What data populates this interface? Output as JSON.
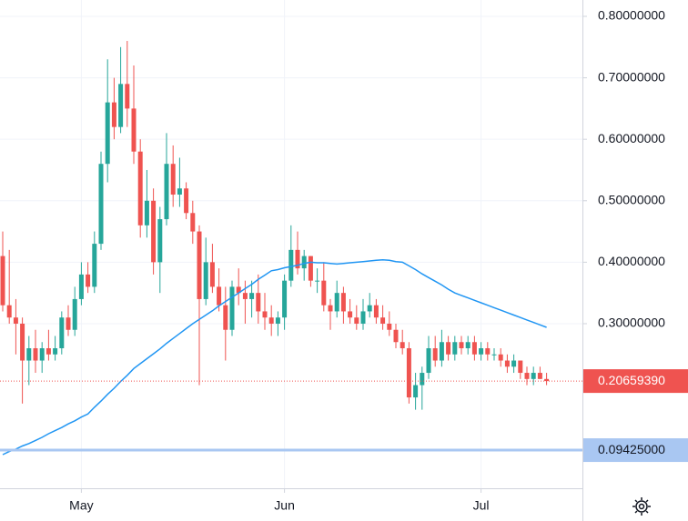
{
  "chart_data": {
    "type": "candlestick",
    "up_color": "#26a69a",
    "down_color": "#ef5350",
    "ma_color": "#2196f3",
    "ylim": [
      0.0322,
      0.8266
    ],
    "yticks": [
      {
        "value": 0.8,
        "label": "0.80000000"
      },
      {
        "value": 0.7,
        "label": "0.70000000"
      },
      {
        "value": 0.6,
        "label": "0.60000000"
      },
      {
        "value": 0.5,
        "label": "0.50000000"
      },
      {
        "value": 0.4,
        "label": "0.40000000"
      },
      {
        "value": 0.3,
        "label": "0.30000000"
      }
    ],
    "xticks": [
      {
        "value": 12,
        "label": "May"
      },
      {
        "value": 43,
        "label": "Jun"
      },
      {
        "value": 73,
        "label": "Jul"
      }
    ],
    "grid": true,
    "last_price": {
      "value": 0.2065939,
      "label": "0.20659390"
    },
    "price_line": {
      "value": 0.09425,
      "label": "0.09425000"
    },
    "open": [
      0.41,
      0.33,
      0.31,
      0.3,
      0.24,
      0.26,
      0.24,
      0.26,
      0.25,
      0.26,
      0.31,
      0.29,
      0.34,
      0.38,
      0.36,
      0.43,
      0.56,
      0.66,
      0.62,
      0.69,
      0.65,
      0.58,
      0.46,
      0.5,
      0.4,
      0.47,
      0.56,
      0.51,
      0.52,
      0.48,
      0.45,
      0.34,
      0.4,
      0.36,
      0.33,
      0.29,
      0.36,
      0.35,
      0.34,
      0.35,
      0.32,
      0.31,
      0.3,
      0.31,
      0.37,
      0.42,
      0.39,
      0.41,
      0.37,
      0.37,
      0.33,
      0.32,
      0.35,
      0.32,
      0.31,
      0.3,
      0.32,
      0.33,
      0.31,
      0.3,
      0.29,
      0.27,
      0.26,
      0.18,
      0.2,
      0.22,
      0.26,
      0.24,
      0.27,
      0.25,
      0.27,
      0.26,
      0.27,
      0.25,
      0.26,
      0.25,
      0.25,
      0.24,
      0.23,
      0.24,
      0.22,
      0.21,
      0.22,
      0.21
    ],
    "high": [
      0.45,
      0.42,
      0.34,
      0.31,
      0.28,
      0.29,
      0.27,
      0.29,
      0.28,
      0.32,
      0.33,
      0.36,
      0.4,
      0.4,
      0.45,
      0.58,
      0.73,
      0.7,
      0.75,
      0.76,
      0.72,
      0.6,
      0.55,
      0.52,
      0.49,
      0.61,
      0.59,
      0.57,
      0.53,
      0.5,
      0.46,
      0.44,
      0.43,
      0.39,
      0.36,
      0.37,
      0.39,
      0.37,
      0.37,
      0.38,
      0.35,
      0.33,
      0.32,
      0.38,
      0.46,
      0.45,
      0.42,
      0.41,
      0.39,
      0.4,
      0.34,
      0.37,
      0.36,
      0.34,
      0.33,
      0.34,
      0.35,
      0.34,
      0.33,
      0.32,
      0.3,
      0.29,
      0.27,
      0.22,
      0.23,
      0.28,
      0.28,
      0.29,
      0.28,
      0.28,
      0.28,
      0.28,
      0.28,
      0.27,
      0.27,
      0.26,
      0.26,
      0.25,
      0.25,
      0.24,
      0.23,
      0.23,
      0.23,
      0.22
    ],
    "low": [
      0.32,
      0.3,
      0.25,
      0.17,
      0.2,
      0.22,
      0.22,
      0.24,
      0.24,
      0.25,
      0.28,
      0.28,
      0.33,
      0.35,
      0.35,
      0.42,
      0.53,
      0.6,
      0.61,
      0.62,
      0.56,
      0.44,
      0.44,
      0.38,
      0.35,
      0.46,
      0.49,
      0.49,
      0.47,
      0.43,
      0.2,
      0.33,
      0.35,
      0.32,
      0.24,
      0.28,
      0.33,
      0.3,
      0.31,
      0.3,
      0.29,
      0.28,
      0.28,
      0.29,
      0.36,
      0.38,
      0.37,
      0.36,
      0.35,
      0.32,
      0.29,
      0.31,
      0.3,
      0.3,
      0.29,
      0.29,
      0.31,
      0.3,
      0.29,
      0.28,
      0.26,
      0.25,
      0.17,
      0.16,
      0.16,
      0.21,
      0.23,
      0.23,
      0.24,
      0.24,
      0.25,
      0.25,
      0.24,
      0.24,
      0.24,
      0.24,
      0.23,
      0.22,
      0.22,
      0.21,
      0.2,
      0.2,
      0.21,
      0.2
    ],
    "close": [
      0.33,
      0.31,
      0.3,
      0.24,
      0.26,
      0.24,
      0.26,
      0.25,
      0.26,
      0.31,
      0.29,
      0.34,
      0.38,
      0.36,
      0.43,
      0.56,
      0.66,
      0.62,
      0.69,
      0.65,
      0.58,
      0.46,
      0.5,
      0.4,
      0.47,
      0.56,
      0.51,
      0.52,
      0.48,
      0.45,
      0.34,
      0.4,
      0.36,
      0.33,
      0.29,
      0.36,
      0.35,
      0.34,
      0.35,
      0.32,
      0.31,
      0.3,
      0.31,
      0.37,
      0.42,
      0.39,
      0.41,
      0.37,
      0.37,
      0.33,
      0.32,
      0.35,
      0.32,
      0.31,
      0.3,
      0.32,
      0.33,
      0.31,
      0.3,
      0.29,
      0.27,
      0.26,
      0.18,
      0.2,
      0.22,
      0.26,
      0.24,
      0.27,
      0.25,
      0.27,
      0.26,
      0.27,
      0.25,
      0.26,
      0.25,
      0.25,
      0.24,
      0.23,
      0.24,
      0.22,
      0.21,
      0.22,
      0.21,
      0.2066
    ],
    "ma": [
      0.087,
      0.092,
      0.096,
      0.101,
      0.105,
      0.11,
      0.115,
      0.121,
      0.126,
      0.131,
      0.137,
      0.142,
      0.148,
      0.153,
      0.164,
      0.174,
      0.185,
      0.195,
      0.206,
      0.216,
      0.227,
      0.235,
      0.243,
      0.251,
      0.259,
      0.268,
      0.276,
      0.284,
      0.292,
      0.3,
      0.307,
      0.314,
      0.321,
      0.329,
      0.336,
      0.343,
      0.35,
      0.357,
      0.364,
      0.372,
      0.379,
      0.386,
      0.388,
      0.391,
      0.393,
      0.395,
      0.398,
      0.4,
      0.399,
      0.399,
      0.398,
      0.397,
      0.398,
      0.399,
      0.4,
      0.401,
      0.402,
      0.403,
      0.404,
      0.403,
      0.401,
      0.4,
      0.394,
      0.388,
      0.381,
      0.375,
      0.369,
      0.363,
      0.356,
      0.35,
      0.346,
      0.342,
      0.338,
      0.334,
      0.33,
      0.326,
      0.322,
      0.318,
      0.314,
      0.31,
      0.306,
      0.302,
      0.298,
      0.294
    ]
  }
}
